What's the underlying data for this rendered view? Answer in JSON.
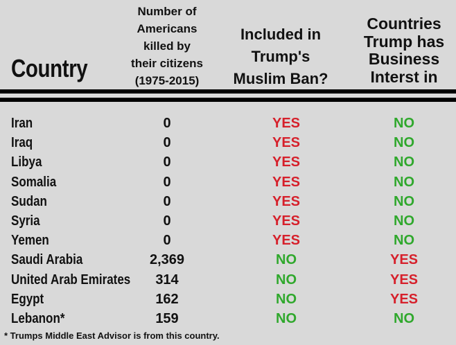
{
  "headers": {
    "country": "Country",
    "killed": [
      "Number of",
      "Americans",
      "killed by",
      "their citizens",
      "(1975-2015)"
    ],
    "ban": [
      "Included in",
      "Trump's",
      "Muslim Ban?"
    ],
    "business": [
      "Countries",
      "Trump has",
      "Business",
      "Interst in"
    ]
  },
  "rows": [
    {
      "country": "Iran",
      "killed": "0",
      "ban": "YES",
      "business": "NO"
    },
    {
      "country": "Iraq",
      "killed": "0",
      "ban": "YES",
      "business": "NO"
    },
    {
      "country": "Libya",
      "killed": "0",
      "ban": "YES",
      "business": "NO"
    },
    {
      "country": "Somalia",
      "killed": "0",
      "ban": "YES",
      "business": "NO"
    },
    {
      "country": "Sudan",
      "killed": "0",
      "ban": "YES",
      "business": "NO"
    },
    {
      "country": "Syria",
      "killed": "0",
      "ban": "YES",
      "business": "NO"
    },
    {
      "country": "Yemen",
      "killed": "0",
      "ban": "YES",
      "business": "NO"
    },
    {
      "country": "Saudi Arabia",
      "killed": "2,369",
      "ban": "NO",
      "business": "YES"
    },
    {
      "country": "United Arab Emirates",
      "killed": "314",
      "ban": "NO",
      "business": "YES"
    },
    {
      "country": "Egypt",
      "killed": "162",
      "ban": "NO",
      "business": "YES"
    },
    {
      "country": "Lebanon*",
      "killed": "159",
      "ban": "NO",
      "business": "NO"
    }
  ],
  "footnote": "* Trumps Middle East Advisor is from this country.",
  "colors": {
    "yes": "#d6202b",
    "no": "#2fa82c",
    "background": "#d9d9d9"
  }
}
